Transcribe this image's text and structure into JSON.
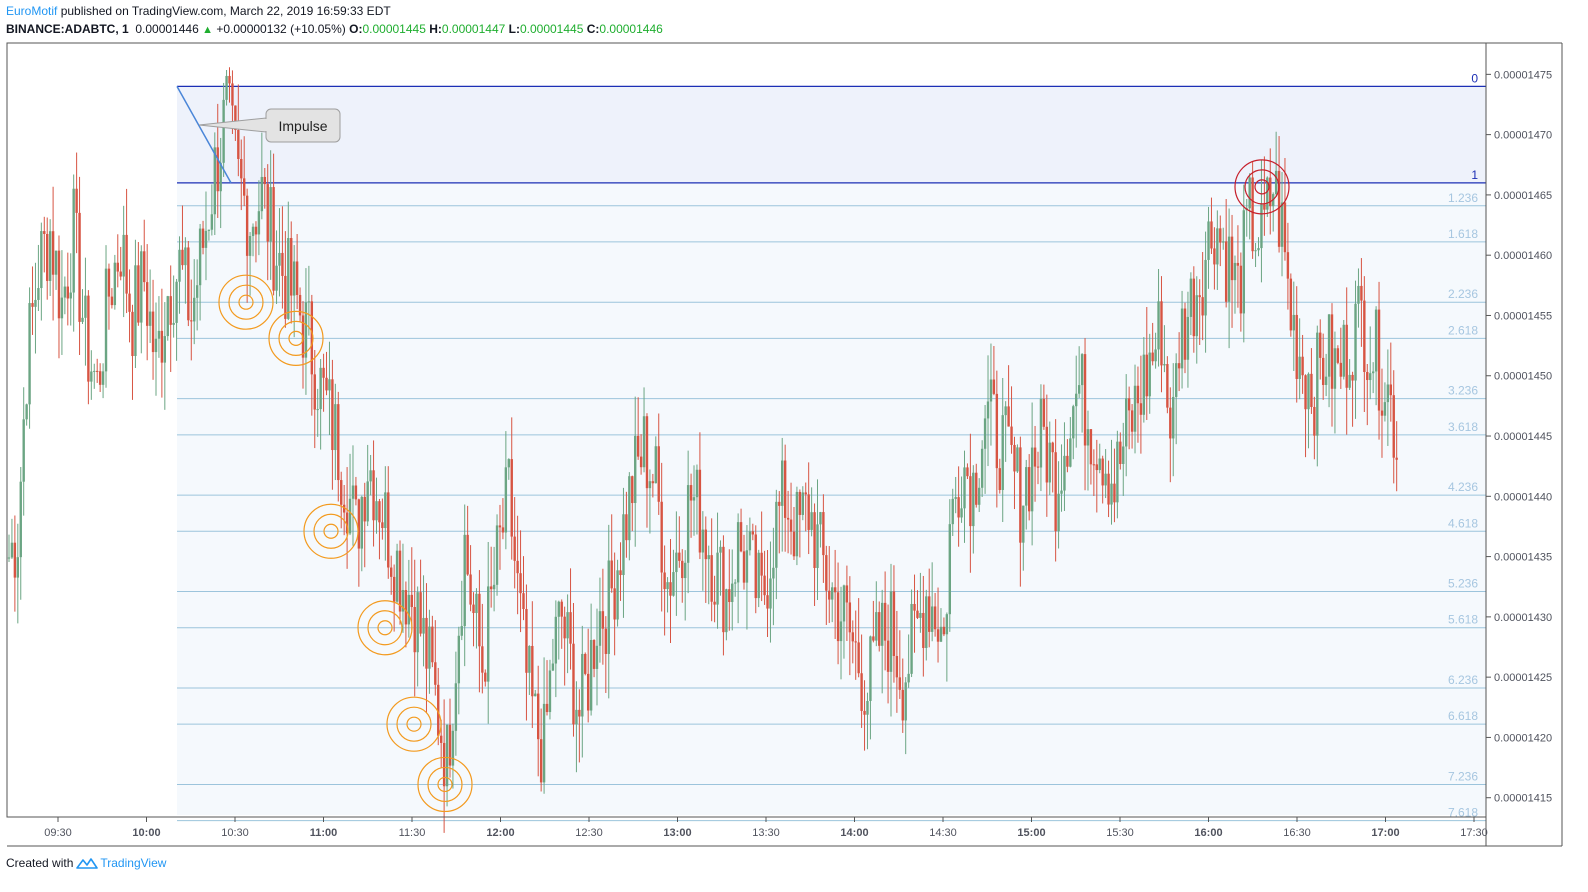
{
  "header": {
    "author": "EuroMotif",
    "published_text": "published on TradingView.com, March 22, 2019 16:59:33 EDT",
    "symbol": "BINANCE:ADABTC, 1",
    "last_price": "0.00001446",
    "change": "+0.00000132 (+10.05%)",
    "open_label": "O:",
    "open_value": "0.00001445",
    "high_label": "H:",
    "high_value": "0.00001447",
    "low_label": "L:",
    "low_value": "0.00001445",
    "close_label": "C:",
    "close_value": "0.00001446"
  },
  "footer": {
    "created_with": "Created with",
    "brand": "TradingView"
  },
  "colors": {
    "up": "#6ba583",
    "down": "#d75442",
    "fib_line": "#9cc4dc",
    "fib_fill": "#f5f9fd",
    "fib_zone_fill": "#eef2fb",
    "fib_main": "#1c2fb5",
    "fib_text": "#a6c6e0",
    "orange": "#f39a1e",
    "red_target": "#c61f2b",
    "impulse": "#4a86d8",
    "axis_text": "#50535e"
  },
  "chart_data": {
    "type": "candlestick",
    "symbol": "BINANCE:ADABTC",
    "interval": "1",
    "ylim": [
      1.4134e-05,
      1.4776e-05
    ],
    "y_ticks": [
      "0.00001415",
      "0.00001420",
      "0.00001425",
      "0.00001430",
      "0.00001435",
      "0.00001440",
      "0.00001445",
      "0.00001450",
      "0.00001455",
      "0.00001460",
      "0.00001465",
      "0.00001470",
      "0.00001475"
    ],
    "x_ticks": [
      {
        "label": "09:30",
        "major": false
      },
      {
        "label": "10:00",
        "major": true
      },
      {
        "label": "10:30",
        "major": false
      },
      {
        "label": "11:00",
        "major": true
      },
      {
        "label": "11:30",
        "major": false
      },
      {
        "label": "12:00",
        "major": true
      },
      {
        "label": "12:30",
        "major": false
      },
      {
        "label": "13:00",
        "major": true
      },
      {
        "label": "13:30",
        "major": false
      },
      {
        "label": "14:00",
        "major": true
      },
      {
        "label": "14:30",
        "major": false
      },
      {
        "label": "15:00",
        "major": true
      },
      {
        "label": "15:30",
        "major": false
      },
      {
        "label": "16:00",
        "major": true
      },
      {
        "label": "16:30",
        "major": false
      },
      {
        "label": "17:00",
        "major": true
      },
      {
        "label": "17:30",
        "major": false
      }
    ],
    "fib_extension": {
      "level_0": 1.474e-05,
      "level_1": 1.466e-05,
      "levels": [
        {
          "ratio": "0",
          "price": 1.474e-05
        },
        {
          "ratio": "1",
          "price": 1.466e-05
        },
        {
          "ratio": "1.236",
          "price": 1.4641e-05
        },
        {
          "ratio": "1.618",
          "price": 1.4611e-05
        },
        {
          "ratio": "2.236",
          "price": 1.4561e-05
        },
        {
          "ratio": "2.618",
          "price": 1.4531e-05
        },
        {
          "ratio": "3.236",
          "price": 1.4481e-05
        },
        {
          "ratio": "3.618",
          "price": 1.4451e-05
        },
        {
          "ratio": "4.236",
          "price": 1.4401e-05
        },
        {
          "ratio": "4.618",
          "price": 1.4371e-05
        },
        {
          "ratio": "5.236",
          "price": 1.4321e-05
        },
        {
          "ratio": "5.618",
          "price": 1.4291e-05
        },
        {
          "ratio": "6.236",
          "price": 1.4241e-05
        },
        {
          "ratio": "6.618",
          "price": 1.4211e-05
        },
        {
          "ratio": "7.236",
          "price": 1.4161e-05
        },
        {
          "ratio": "7.618",
          "price": 1.4131e-05
        }
      ]
    },
    "impulse": {
      "label": "Impulse",
      "start_price": 1.474e-05,
      "end_price": 1.466e-05
    },
    "targets_hit": [
      {
        "ratio": "2.236",
        "color": "orange"
      },
      {
        "ratio": "2.618",
        "color": "orange"
      },
      {
        "ratio": "4.618",
        "color": "orange"
      },
      {
        "ratio": "5.618",
        "color": "orange"
      },
      {
        "ratio": "6.618",
        "color": "orange"
      },
      {
        "ratio": "7.236",
        "color": "orange"
      },
      {
        "ratio": "1",
        "color": "red"
      }
    ],
    "price_path": [
      [
        0,
        1.435e-05
      ],
      [
        3,
        1.437e-05
      ],
      [
        6,
        1.451e-05
      ],
      [
        10,
        1.459e-05
      ],
      [
        14,
        1.462e-05
      ],
      [
        18,
        1.456e-05
      ],
      [
        22,
        1.462e-05
      ],
      [
        26,
        1.453e-05
      ],
      [
        30,
        1.449e-05
      ],
      [
        34,
        1.457e-05
      ],
      [
        38,
        1.461e-05
      ],
      [
        42,
        1.455e-05
      ],
      [
        46,
        1.458e-05
      ],
      [
        50,
        1.451e-05
      ],
      [
        54,
        1.457e-05
      ],
      [
        58,
        1.459e-05
      ],
      [
        62,
        1.455e-05
      ],
      [
        66,
        1.461e-05
      ],
      [
        70,
        1.467e-05
      ],
      [
        74,
        1.472e-05
      ],
      [
        78,
        1.466e-05
      ],
      [
        82,
        1.463e-05
      ],
      [
        86,
        1.465e-05
      ],
      [
        90,
        1.461e-05
      ],
      [
        94,
        1.458e-05
      ],
      [
        98,
        1.456e-05
      ],
      [
        102,
        1.453e-05
      ],
      [
        106,
        1.449e-05
      ],
      [
        110,
        1.446e-05
      ],
      [
        114,
        1.442e-05
      ],
      [
        118,
        1.437e-05
      ],
      [
        122,
        1.443e-05
      ],
      [
        126,
        1.44e-05
      ],
      [
        130,
        1.436e-05
      ],
      [
        134,
        1.433e-05
      ],
      [
        138,
        1.431e-05
      ],
      [
        142,
        1.427e-05
      ],
      [
        146,
        1.422e-05
      ],
      [
        149,
        1.418e-05
      ],
      [
        152,
        1.427e-05
      ],
      [
        155,
        1.436e-05
      ],
      [
        158,
        1.43e-05
      ],
      [
        161,
        1.426e-05
      ],
      [
        164,
        1.431e-05
      ],
      [
        167,
        1.436e-05
      ],
      [
        170,
        1.44e-05
      ],
      [
        173,
        1.432e-05
      ],
      [
        176,
        1.425e-05
      ],
      [
        179,
        1.421e-05
      ],
      [
        182,
        1.419e-05
      ],
      [
        185,
        1.427e-05
      ],
      [
        188,
        1.43e-05
      ],
      [
        191,
        1.426e-05
      ],
      [
        194,
        1.422e-05
      ],
      [
        197,
        1.425e-05
      ],
      [
        200,
        1.43e-05
      ],
      [
        204,
        1.431e-05
      ],
      [
        208,
        1.436e-05
      ],
      [
        212,
        1.441e-05
      ],
      [
        216,
        1.444e-05
      ],
      [
        220,
        1.441e-05
      ],
      [
        224,
        1.433e-05
      ],
      [
        228,
        1.436e-05
      ],
      [
        232,
        1.44e-05
      ],
      [
        236,
        1.438e-05
      ],
      [
        240,
        1.434e-05
      ],
      [
        244,
        1.432e-05
      ],
      [
        248,
        1.436e-05
      ],
      [
        252,
        1.434e-05
      ],
      [
        256,
        1.431e-05
      ],
      [
        260,
        1.437e-05
      ],
      [
        264,
        1.44e-05
      ],
      [
        268,
        1.437e-05
      ],
      [
        272,
        1.439e-05
      ],
      [
        276,
        1.435e-05
      ],
      [
        280,
        1.432e-05
      ],
      [
        284,
        1.43e-05
      ],
      [
        288,
        1.427e-05
      ],
      [
        292,
        1.424e-05
      ],
      [
        296,
        1.428e-05
      ],
      [
        300,
        1.429e-05
      ],
      [
        304,
        1.425e-05
      ],
      [
        308,
        1.428e-05
      ],
      [
        312,
        1.432e-05
      ],
      [
        316,
        1.43e-05
      ],
      [
        318,
        1.428e-05
      ],
      [
        320,
        1.437e-05
      ],
      [
        324,
        1.443e-05
      ],
      [
        328,
        1.441e-05
      ],
      [
        332,
        1.447e-05
      ],
      [
        336,
        1.445e-05
      ],
      [
        340,
        1.443e-05
      ],
      [
        344,
        1.44e-05
      ],
      [
        348,
        1.443e-05
      ],
      [
        352,
        1.445e-05
      ],
      [
        356,
        1.441e-05
      ],
      [
        360,
        1.446e-05
      ],
      [
        364,
        1.449e-05
      ],
      [
        368,
        1.446e-05
      ],
      [
        372,
        1.444e-05
      ],
      [
        376,
        1.441e-05
      ],
      [
        380,
        1.445e-05
      ],
      [
        384,
        1.448e-05
      ],
      [
        388,
        1.451e-05
      ],
      [
        392,
        1.454e-05
      ],
      [
        394,
        1.448e-05
      ],
      [
        396,
        1.446e-05
      ],
      [
        398,
        1.453e-05
      ],
      [
        402,
        1.456e-05
      ],
      [
        406,
        1.459e-05
      ],
      [
        410,
        1.463e-05
      ],
      [
        414,
        1.46e-05
      ],
      [
        418,
        1.457e-05
      ],
      [
        422,
        1.463e-05
      ],
      [
        426,
        1.461e-05
      ],
      [
        430,
        1.466e-05
      ],
      [
        433,
        1.462e-05
      ],
      [
        436,
        1.455e-05
      ],
      [
        440,
        1.451e-05
      ],
      [
        444,
        1.449e-05
      ],
      [
        448,
        1.452e-05
      ],
      [
        452,
        1.45e-05
      ],
      [
        456,
        1.453e-05
      ],
      [
        460,
        1.455e-05
      ],
      [
        464,
        1.452e-05
      ],
      [
        468,
        1.45e-05
      ],
      [
        472,
        1.445e-05
      ]
    ]
  }
}
